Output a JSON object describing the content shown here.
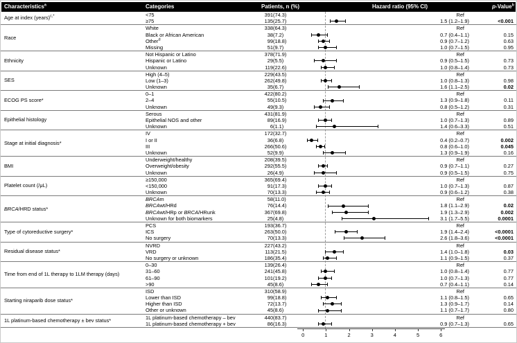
{
  "header": {
    "characteristics": "Characteristics",
    "characteristics_sup": "a",
    "categories": "Categories",
    "patients": "Patients, n (%)",
    "hazard": "Hazard ratio (95% CI)",
    "pvalue_prefix": "p",
    "pvalue_rest": "-Value",
    "pvalue_sup": "b"
  },
  "colors": {
    "header_bg": "#000000",
    "header_fg": "#ffffff",
    "marker": "#000000",
    "ref_line_dash": "#9b9b9b",
    "separator": "#7a7a7a",
    "outer_border": "#c9c9c9"
  },
  "chart_data": {
    "type": "forest",
    "title": "",
    "xlabel": "",
    "xlim": [
      0,
      6
    ],
    "x_ticks": [
      0,
      1,
      2,
      3,
      4,
      5,
      6
    ],
    "ref_line": 1,
    "legend": "none",
    "groups": [
      {
        "label": "Age at index (years)",
        "sup": "c,*",
        "rows": [
          {
            "cat": "<75",
            "n": "391",
            "pct": "(74.3)",
            "hr_text": "Ref",
            "ref": true
          },
          {
            "cat": "≥75",
            "n": "135",
            "pct": "(25.7)",
            "hr": 1.5,
            "lo": 1.2,
            "hi": 1.9,
            "hr_text": "1.5 (1.2–1.9)",
            "p": "<0.001",
            "bold": true
          }
        ]
      },
      {
        "label": "Race",
        "rows": [
          {
            "cat": "White",
            "n": "338",
            "pct": "(64.3)",
            "hr_text": "Ref",
            "ref": true
          },
          {
            "cat": "Black or African American",
            "n": "38",
            "pct": "(7.2)",
            "hr": 0.7,
            "lo": 0.4,
            "hi": 1.1,
            "hr_text": "0.7 (0.4–1.1)",
            "p": "0.15",
            "bold": false
          },
          {
            "cat": "Other",
            "sup": "d",
            "n": "99",
            "pct": "(18.8)",
            "hr": 0.9,
            "lo": 0.7,
            "hi": 1.2,
            "hr_text": "0.9 (0.7–1.2)",
            "p": "0.63",
            "bold": false
          },
          {
            "cat": "Missing",
            "n": "51",
            "pct": "(9.7)",
            "hr": 1.0,
            "lo": 0.7,
            "hi": 1.5,
            "hr_text": "1.0 (0.7–1.5)",
            "p": "0.95",
            "bold": false
          }
        ]
      },
      {
        "label": "Ethnicity",
        "rows": [
          {
            "cat": "Not Hispanic or Latino",
            "n": "378",
            "pct": "(71.9)",
            "hr_text": "Ref",
            "ref": true
          },
          {
            "cat": "Hispanic or Latino",
            "n": "29",
            "pct": "(5.5)",
            "hr": 0.9,
            "lo": 0.5,
            "hi": 1.5,
            "hr_text": "0.9 (0.5–1.5)",
            "p": "0.73",
            "bold": false
          },
          {
            "cat": "Unknown",
            "n": "119",
            "pct": "(22.6)",
            "hr": 1.0,
            "lo": 0.8,
            "hi": 1.4,
            "hr_text": "1.0 (0.8–1.4)",
            "p": "0.73",
            "bold": false
          }
        ]
      },
      {
        "label": "SES",
        "rows": [
          {
            "cat": "High (4–5)",
            "n": "229",
            "pct": "(43.5)",
            "hr_text": "Ref",
            "ref": true
          },
          {
            "cat": "Low (1–3)",
            "n": "262",
            "pct": "(49.8)",
            "hr": 1.0,
            "lo": 0.8,
            "hi": 1.3,
            "hr_text": "1.0 (0.8–1.3)",
            "p": "0.98",
            "bold": false
          },
          {
            "cat": "Unknown",
            "n": "35",
            "pct": "(6.7)",
            "hr": 1.6,
            "lo": 1.1,
            "hi": 2.5,
            "hr_text": "1.6 (1.1–2.5)",
            "p": "0.02",
            "bold": true
          }
        ]
      },
      {
        "label": "ECOG PS score*",
        "rows": [
          {
            "cat": "0–1",
            "n": "422",
            "pct": "(80.2)",
            "hr_text": "Ref",
            "ref": true
          },
          {
            "cat": "2–4",
            "n": "55",
            "pct": "(10.5)",
            "hr": 1.3,
            "lo": 0.9,
            "hi": 1.8,
            "hr_text": "1.3 (0.9–1.8)",
            "p": "0.11",
            "bold": false
          },
          {
            "cat": "Unknown",
            "n": "49",
            "pct": "(9.3)",
            "hr": 0.8,
            "lo": 0.5,
            "hi": 1.2,
            "hr_text": "0.8 (0.5–1.2)",
            "p": "0.31",
            "bold": false
          }
        ]
      },
      {
        "label": "Epithelial histology",
        "rows": [
          {
            "cat": "Serous",
            "n": "431",
            "pct": "(81.9)",
            "hr_text": "Ref",
            "ref": true
          },
          {
            "cat": "Epithelial NOS and other",
            "n": "89",
            "pct": "(16.9)",
            "hr": 1.0,
            "lo": 0.7,
            "hi": 1.3,
            "hr_text": "1.0 (0.7–1.3)",
            "p": "0.89",
            "bold": false
          },
          {
            "cat": "Unknown",
            "n": "6",
            "pct": "(1.1)",
            "hr": 1.4,
            "lo": 0.6,
            "hi": 3.3,
            "hr_text": "1.4 (0.6–3.3)",
            "p": "0.51",
            "bold": false
          }
        ]
      },
      {
        "label": "Stage at initial diagnosis*",
        "rows": [
          {
            "cat": "IV",
            "n": "172",
            "pct": "(32.7)",
            "hr_text": "Ref",
            "ref": true
          },
          {
            "cat": "I or II",
            "n": "36",
            "pct": "(6.8)",
            "hr": 0.4,
            "lo": 0.2,
            "hi": 0.7,
            "hr_text": "0.4 (0.2–0.7)",
            "p": "0.002",
            "bold": true
          },
          {
            "cat": "III",
            "n": "266",
            "pct": "(50.6)",
            "hr": 0.8,
            "lo": 0.6,
            "hi": 1.0,
            "hr_text": "0.8 (0.6–1.0)",
            "p": "0.045",
            "bold": true
          },
          {
            "cat": "Unknown",
            "n": "52",
            "pct": "(9.9)",
            "hr": 1.3,
            "lo": 0.9,
            "hi": 1.9,
            "hr_text": "1.3 (0.9–1.9)",
            "p": "0.16",
            "bold": false
          }
        ]
      },
      {
        "label": "BMI",
        "rows": [
          {
            "cat": "Underweight/healthy",
            "n": "208",
            "pct": "(39.5)",
            "hr_text": "Ref",
            "ref": true
          },
          {
            "cat": "Overweight/obesity",
            "n": "292",
            "pct": "(55.5)",
            "hr": 0.9,
            "lo": 0.7,
            "hi": 1.1,
            "hr_text": "0.9 (0.7–1.1)",
            "p": "0.27",
            "bold": false
          },
          {
            "cat": "Unknown",
            "n": "26",
            "pct": "(4.9)",
            "hr": 0.9,
            "lo": 0.5,
            "hi": 1.5,
            "hr_text": "0.9 (0.5–1.5)",
            "p": "0.75",
            "bold": false
          }
        ]
      },
      {
        "label": "Platelet count (/μL)",
        "rows": [
          {
            "cat": "≥150,000",
            "n": "365",
            "pct": "(69.4)",
            "hr_text": "Ref",
            "ref": true
          },
          {
            "cat": "<150,000",
            "n": "91",
            "pct": "(17.3)",
            "hr": 1.0,
            "lo": 0.7,
            "hi": 1.3,
            "hr_text": "1.0 (0.7–1.3)",
            "p": "0.87",
            "bold": false
          },
          {
            "cat": "Unknown",
            "n": "70",
            "pct": "(13.3)",
            "hr": 0.9,
            "lo": 0.6,
            "hi": 1.2,
            "hr_text": "0.9 (0.6–1.2)",
            "p": "0.38",
            "bold": false
          }
        ]
      },
      {
        "label": "{BRCA}/HRD status*",
        "rows": [
          {
            "cat": "{BRCA}m",
            "n": "58",
            "pct": "(11.0)",
            "hr_text": "Ref",
            "ref": true
          },
          {
            "cat": "{BRCA}wt/HRd",
            "n": "76",
            "pct": "(14.4)",
            "hr": 1.8,
            "lo": 1.1,
            "hi": 2.9,
            "hr_text": "1.8 (1.1–2.9)",
            "p": "0.02",
            "bold": true
          },
          {
            "cat": "{BRCA}wt/HRp or {BRCA}/HRunk",
            "n": "367",
            "pct": "(69.8)",
            "hr": 1.9,
            "lo": 1.3,
            "hi": 2.9,
            "hr_text": "1.9 (1.3–2.9)",
            "p": "0.002",
            "bold": true
          },
          {
            "cat": "Unknown for both biomarkers",
            "n": "25",
            "pct": "(4.8)",
            "hr": 3.1,
            "lo": 1.7,
            "hi": 5.5,
            "hr_text": "3.1 (1.7–5.5)",
            "p": "0.0001",
            "bold": true
          }
        ]
      },
      {
        "label": "Type of cytoreductive surgery*",
        "rows": [
          {
            "cat": "PCS",
            "n": "193",
            "pct": "(36.7)",
            "hr_text": "Ref",
            "ref": true
          },
          {
            "cat": "ICS",
            "n": "263",
            "pct": "(50.0)",
            "hr": 1.9,
            "lo": 1.4,
            "hi": 2.4,
            "hr_text": "1.9 (1.4–2.4)",
            "p": "<0.0001",
            "bold": true
          },
          {
            "cat": "No surgery",
            "n": "70",
            "pct": "(13.3)",
            "hr": 2.6,
            "lo": 1.8,
            "hi": 3.6,
            "hr_text": "2.6 (1.8–3.6)",
            "p": "<0.0001",
            "bold": true
          }
        ]
      },
      {
        "label": "Residual disease status*",
        "rows": [
          {
            "cat": "NVRD",
            "n": "227",
            "pct": "(43.2)",
            "hr_text": "Ref",
            "ref": true
          },
          {
            "cat": "VRD",
            "n": "113",
            "pct": "(21.5)",
            "hr": 1.4,
            "lo": 1.0,
            "hi": 1.8,
            "hr_text": "1.4 (1.0–1.8)",
            "p": "0.03",
            "bold": true
          },
          {
            "cat": "No surgery or unknown",
            "n": "186",
            "pct": "(35.4)",
            "hr": 1.1,
            "lo": 0.9,
            "hi": 1.5,
            "hr_text": "1.1 (0.9–1.5)",
            "p": "0.37",
            "bold": false
          }
        ]
      },
      {
        "label": "Time from end of 1L therapy to 1LM therapy (days)",
        "rows": [
          {
            "cat": "0–30",
            "n": "139",
            "pct": "(26.4)",
            "hr_text": "Ref",
            "ref": true
          },
          {
            "cat": "31–60",
            "n": "241",
            "pct": "(45.8)",
            "hr": 1.0,
            "lo": 0.8,
            "hi": 1.4,
            "hr_text": "1.0 (0.8–1.4)",
            "p": "0.77",
            "bold": false
          },
          {
            "cat": "61–90",
            "n": "101",
            "pct": "(19.2)",
            "hr": 1.0,
            "lo": 0.7,
            "hi": 1.3,
            "hr_text": "1.0 (0.7–1.3)",
            "p": "0.77",
            "bold": false
          },
          {
            "cat": ">90",
            "n": "45",
            "pct": "(8.6)",
            "hr": 0.7,
            "lo": 0.4,
            "hi": 1.1,
            "hr_text": "0.7 (0.4–1.1)",
            "p": "0.14",
            "bold": false
          }
        ]
      },
      {
        "label": "Starting niraparib dose status*",
        "rows": [
          {
            "cat": "ISD",
            "n": "310",
            "pct": "(58.9)",
            "hr_text": "Ref",
            "ref": true
          },
          {
            "cat": "Lower than ISD",
            "n": "99",
            "pct": "(18.8)",
            "hr": 1.1,
            "lo": 0.8,
            "hi": 1.5,
            "hr_text": "1.1 (0.8–1.5)",
            "p": "0.65",
            "bold": false
          },
          {
            "cat": "Higher than ISD",
            "n": "72",
            "pct": "(13.7)",
            "hr": 1.3,
            "lo": 0.9,
            "hi": 1.7,
            "hr_text": "1.3 (0.9–1.7)",
            "p": "0.14",
            "bold": false
          },
          {
            "cat": "Other or unknown",
            "n": "45",
            "pct": "(8.6)",
            "hr": 1.1,
            "lo": 0.7,
            "hi": 1.7,
            "hr_text": "1.1 (0.7–1.7)",
            "p": "0.80",
            "bold": false
          }
        ]
      },
      {
        "label": "1L platinum-based chemotherapy ± bev status*",
        "rows": [
          {
            "cat": "1L platinum-based chemotherapy – bev",
            "n": "440",
            "pct": "(83.7)",
            "hr_text": "Ref",
            "ref": true
          },
          {
            "cat": "1L platinum-based chemotherapy + bev",
            "n": "86",
            "pct": "(16.3)",
            "hr": 0.9,
            "lo": 0.7,
            "hi": 1.3,
            "hr_text": "0.9 (0.7–1.3)",
            "p": "0.65",
            "bold": false
          }
        ]
      }
    ]
  }
}
